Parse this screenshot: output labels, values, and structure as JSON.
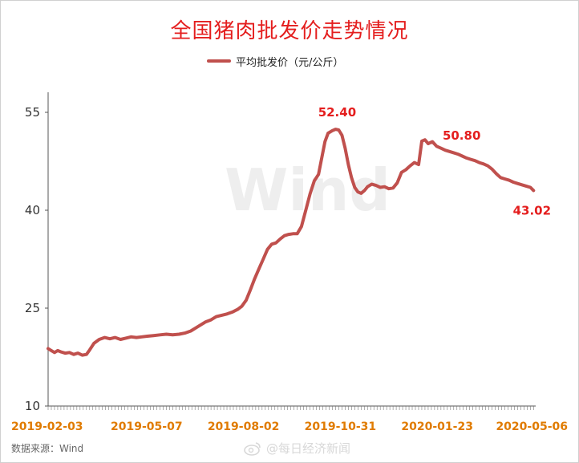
{
  "page": {
    "source_text": "数据来源：Wind",
    "social_watermark": "@每日经济新闻",
    "chart_watermark": "Wind"
  },
  "chart_data": {
    "type": "line",
    "title": "全国猪肉批发价走势情况",
    "legend_position": "top-center",
    "grid": false,
    "series": [
      {
        "name": "平均批发价（元/公斤）",
        "color": "#c0504d",
        "points": [
          [
            "2019-02-03",
            18.8
          ],
          [
            "2019-02-06",
            18.5
          ],
          [
            "2019-02-09",
            18.2
          ],
          [
            "2019-02-12",
            18.5
          ],
          [
            "2019-02-15",
            18.3
          ],
          [
            "2019-02-19",
            18.1
          ],
          [
            "2019-02-23",
            18.2
          ],
          [
            "2019-02-27",
            17.9
          ],
          [
            "2019-03-03",
            18.1
          ],
          [
            "2019-03-07",
            17.8
          ],
          [
            "2019-03-11",
            17.9
          ],
          [
            "2019-03-14",
            18.6
          ],
          [
            "2019-03-18",
            19.6
          ],
          [
            "2019-03-23",
            20.2
          ],
          [
            "2019-03-28",
            20.5
          ],
          [
            "2019-04-02",
            20.3
          ],
          [
            "2019-04-07",
            20.5
          ],
          [
            "2019-04-12",
            20.2
          ],
          [
            "2019-04-17",
            20.4
          ],
          [
            "2019-04-22",
            20.6
          ],
          [
            "2019-04-27",
            20.5
          ],
          [
            "2019-05-02",
            20.6
          ],
          [
            "2019-05-07",
            20.7
          ],
          [
            "2019-05-13",
            20.8
          ],
          [
            "2019-05-19",
            20.9
          ],
          [
            "2019-05-25",
            21.0
          ],
          [
            "2019-05-31",
            20.9
          ],
          [
            "2019-06-06",
            21.0
          ],
          [
            "2019-06-12",
            21.2
          ],
          [
            "2019-06-17",
            21.5
          ],
          [
            "2019-06-22",
            22.0
          ],
          [
            "2019-06-27",
            22.5
          ],
          [
            "2019-07-01",
            22.9
          ],
          [
            "2019-07-06",
            23.2
          ],
          [
            "2019-07-11",
            23.7
          ],
          [
            "2019-07-16",
            23.9
          ],
          [
            "2019-07-21",
            24.1
          ],
          [
            "2019-07-26",
            24.4
          ],
          [
            "2019-07-31",
            24.8
          ],
          [
            "2019-08-04",
            25.3
          ],
          [
            "2019-08-08",
            26.2
          ],
          [
            "2019-08-12",
            27.8
          ],
          [
            "2019-08-16",
            29.5
          ],
          [
            "2019-08-20",
            31.0
          ],
          [
            "2019-08-24",
            32.5
          ],
          [
            "2019-08-28",
            34.0
          ],
          [
            "2019-09-01",
            34.8
          ],
          [
            "2019-09-05",
            35.0
          ],
          [
            "2019-09-09",
            35.6
          ],
          [
            "2019-09-13",
            36.1
          ],
          [
            "2019-09-17",
            36.3
          ],
          [
            "2019-09-21",
            36.4
          ],
          [
            "2019-09-25",
            36.4
          ],
          [
            "2019-09-29",
            37.5
          ],
          [
            "2019-10-03",
            40.0
          ],
          [
            "2019-10-07",
            42.5
          ],
          [
            "2019-10-11",
            44.5
          ],
          [
            "2019-10-15",
            45.5
          ],
          [
            "2019-10-18",
            48.0
          ],
          [
            "2019-10-21",
            50.5
          ],
          [
            "2019-10-24",
            51.8
          ],
          [
            "2019-10-28",
            52.2
          ],
          [
            "2019-10-31",
            52.4
          ],
          [
            "2019-11-03",
            52.3
          ],
          [
            "2019-11-06",
            51.5
          ],
          [
            "2019-11-09",
            49.5
          ],
          [
            "2019-11-12",
            47.0
          ],
          [
            "2019-11-15",
            45.0
          ],
          [
            "2019-11-18",
            43.5
          ],
          [
            "2019-11-21",
            42.8
          ],
          [
            "2019-11-24",
            42.6
          ],
          [
            "2019-11-27",
            43.0
          ],
          [
            "2019-11-30",
            43.6
          ],
          [
            "2019-12-04",
            44.0
          ],
          [
            "2019-12-08",
            43.8
          ],
          [
            "2019-12-12",
            43.5
          ],
          [
            "2019-12-16",
            43.6
          ],
          [
            "2019-12-20",
            43.3
          ],
          [
            "2019-12-24",
            43.4
          ],
          [
            "2019-12-28",
            44.2
          ],
          [
            "2020-01-01",
            45.8
          ],
          [
            "2020-01-05",
            46.2
          ],
          [
            "2020-01-09",
            46.8
          ],
          [
            "2020-01-13",
            47.3
          ],
          [
            "2020-01-17",
            47.0
          ],
          [
            "2020-01-20",
            50.6
          ],
          [
            "2020-01-23",
            50.8
          ],
          [
            "2020-01-26",
            50.2
          ],
          [
            "2020-01-30",
            50.5
          ],
          [
            "2020-02-03",
            49.8
          ],
          [
            "2020-02-07",
            49.5
          ],
          [
            "2020-02-11",
            49.2
          ],
          [
            "2020-02-15",
            49.0
          ],
          [
            "2020-02-19",
            48.8
          ],
          [
            "2020-02-23",
            48.6
          ],
          [
            "2020-02-27",
            48.3
          ],
          [
            "2020-03-02",
            48.0
          ],
          [
            "2020-03-06",
            47.8
          ],
          [
            "2020-03-10",
            47.6
          ],
          [
            "2020-03-14",
            47.3
          ],
          [
            "2020-03-18",
            47.1
          ],
          [
            "2020-03-22",
            46.8
          ],
          [
            "2020-03-26",
            46.3
          ],
          [
            "2020-03-30",
            45.6
          ],
          [
            "2020-04-03",
            45.0
          ],
          [
            "2020-04-07",
            44.8
          ],
          [
            "2020-04-11",
            44.6
          ],
          [
            "2020-04-15",
            44.3
          ],
          [
            "2020-04-19",
            44.1
          ],
          [
            "2020-04-23",
            43.9
          ],
          [
            "2020-04-27",
            43.7
          ],
          [
            "2020-05-01",
            43.5
          ],
          [
            "2020-05-04",
            43.02
          ]
        ]
      }
    ],
    "x_tick_labels": [
      "2019-02-03",
      "2019-05-07",
      "2019-08-02",
      "2019-10-31",
      "2020-01-23",
      "2020-05-06"
    ],
    "y_ticks": [
      10,
      25,
      40,
      55
    ],
    "ylim": [
      10,
      55
    ],
    "xlim": [
      "2019-02-03",
      "2020-05-06"
    ],
    "annotations": [
      {
        "x": "2019-10-31",
        "y": 52.4,
        "label": "52.40"
      },
      {
        "x": "2020-01-23",
        "y": 50.8,
        "label": "50.80"
      },
      {
        "x": "2020-05-04",
        "y": 43.02,
        "label": "43.02"
      }
    ]
  }
}
